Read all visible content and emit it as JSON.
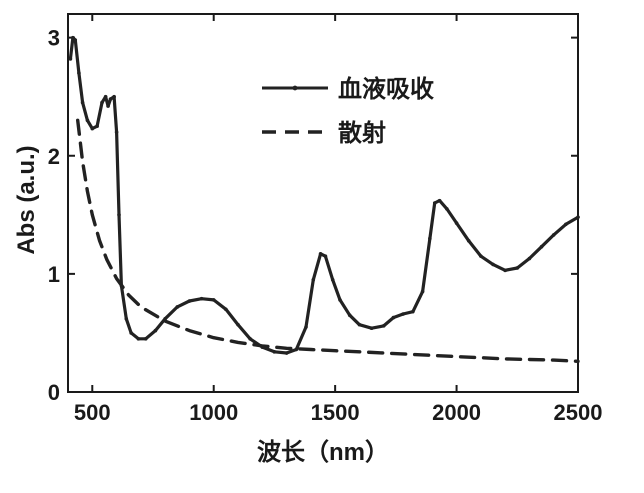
{
  "chart_data": {
    "type": "line",
    "title": "",
    "xlabel": "波长（nm）",
    "ylabel": "Abs (a.u.)",
    "xlim": [
      400,
      2500
    ],
    "ylim": [
      0,
      3.2
    ],
    "x_ticks": [
      "500",
      "1000",
      "1500",
      "2000",
      "2500"
    ],
    "y_ticks": [
      "0",
      "1",
      "2",
      "3"
    ],
    "grid": false,
    "legend_position": "top-right",
    "series": [
      {
        "name": "血液吸收",
        "style": "solid-with-markers",
        "color": "#222222",
        "points": [
          [
            410,
            2.82
          ],
          [
            420,
            3.0
          ],
          [
            430,
            2.98
          ],
          [
            445,
            2.7
          ],
          [
            460,
            2.45
          ],
          [
            480,
            2.3
          ],
          [
            500,
            2.23
          ],
          [
            520,
            2.25
          ],
          [
            540,
            2.45
          ],
          [
            555,
            2.5
          ],
          [
            565,
            2.42
          ],
          [
            575,
            2.48
          ],
          [
            590,
            2.5
          ],
          [
            600,
            2.2
          ],
          [
            610,
            1.5
          ],
          [
            620,
            0.9
          ],
          [
            640,
            0.62
          ],
          [
            660,
            0.5
          ],
          [
            690,
            0.45
          ],
          [
            720,
            0.45
          ],
          [
            760,
            0.52
          ],
          [
            800,
            0.62
          ],
          [
            850,
            0.72
          ],
          [
            900,
            0.77
          ],
          [
            950,
            0.79
          ],
          [
            1000,
            0.78
          ],
          [
            1050,
            0.7
          ],
          [
            1100,
            0.57
          ],
          [
            1150,
            0.45
          ],
          [
            1200,
            0.38
          ],
          [
            1250,
            0.34
          ],
          [
            1300,
            0.33
          ],
          [
            1340,
            0.36
          ],
          [
            1380,
            0.55
          ],
          [
            1410,
            0.95
          ],
          [
            1440,
            1.17
          ],
          [
            1460,
            1.15
          ],
          [
            1490,
            0.95
          ],
          [
            1520,
            0.78
          ],
          [
            1560,
            0.65
          ],
          [
            1600,
            0.57
          ],
          [
            1650,
            0.54
          ],
          [
            1700,
            0.56
          ],
          [
            1740,
            0.63
          ],
          [
            1780,
            0.66
          ],
          [
            1820,
            0.68
          ],
          [
            1860,
            0.85
          ],
          [
            1890,
            1.3
          ],
          [
            1910,
            1.6
          ],
          [
            1930,
            1.62
          ],
          [
            1960,
            1.55
          ],
          [
            2000,
            1.43
          ],
          [
            2050,
            1.28
          ],
          [
            2100,
            1.15
          ],
          [
            2150,
            1.08
          ],
          [
            2200,
            1.03
          ],
          [
            2250,
            1.05
          ],
          [
            2300,
            1.13
          ],
          [
            2350,
            1.23
          ],
          [
            2400,
            1.33
          ],
          [
            2450,
            1.42
          ],
          [
            2500,
            1.48
          ]
        ]
      },
      {
        "name": "散射",
        "style": "dashed",
        "color": "#222222",
        "points": [
          [
            440,
            2.3
          ],
          [
            460,
            1.95
          ],
          [
            480,
            1.7
          ],
          [
            500,
            1.5
          ],
          [
            530,
            1.28
          ],
          [
            560,
            1.12
          ],
          [
            600,
            0.96
          ],
          [
            650,
            0.82
          ],
          [
            700,
            0.72
          ],
          [
            800,
            0.6
          ],
          [
            900,
            0.52
          ],
          [
            1000,
            0.46
          ],
          [
            1100,
            0.42
          ],
          [
            1200,
            0.39
          ],
          [
            1300,
            0.37
          ],
          [
            1400,
            0.36
          ],
          [
            1500,
            0.35
          ],
          [
            1600,
            0.34
          ],
          [
            1700,
            0.33
          ],
          [
            1800,
            0.32
          ],
          [
            1900,
            0.31
          ],
          [
            2000,
            0.3
          ],
          [
            2100,
            0.29
          ],
          [
            2200,
            0.28
          ],
          [
            2300,
            0.275
          ],
          [
            2400,
            0.27
          ],
          [
            2500,
            0.26
          ]
        ]
      }
    ]
  }
}
